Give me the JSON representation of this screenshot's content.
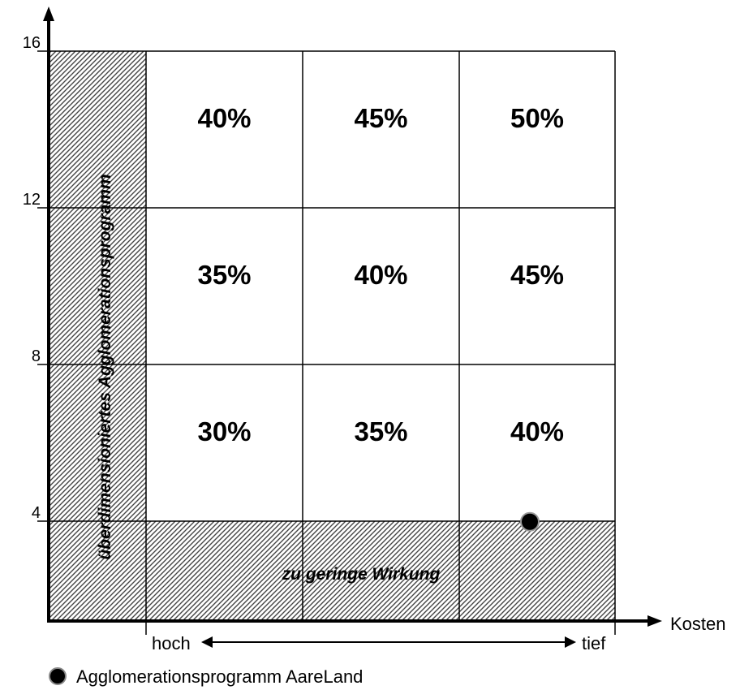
{
  "chart_data": {
    "type": "heatmap",
    "y_ticks": [
      16,
      12,
      8,
      4
    ],
    "ylim": [
      0,
      16
    ],
    "x_axis_label": "Kosten",
    "x_direction_left": "hoch",
    "x_direction_right": "tief",
    "rows": [
      {
        "cells": [
          "40%",
          "45%",
          "50%"
        ]
      },
      {
        "cells": [
          "35%",
          "40%",
          "45%"
        ]
      },
      {
        "cells": [
          "30%",
          "35%",
          "40%"
        ]
      }
    ],
    "zones": {
      "left": "überdimensioniertes Agglomerationsprogramm",
      "bottom": "zu geringe Wirkung"
    },
    "points": [
      {
        "name": "Agglomerationsprogramm AareLand",
        "column": 3,
        "y": 5
      }
    ],
    "legend": {
      "label": "Agglomerationsprogramm AareLand",
      "position": "bottom-left"
    }
  }
}
